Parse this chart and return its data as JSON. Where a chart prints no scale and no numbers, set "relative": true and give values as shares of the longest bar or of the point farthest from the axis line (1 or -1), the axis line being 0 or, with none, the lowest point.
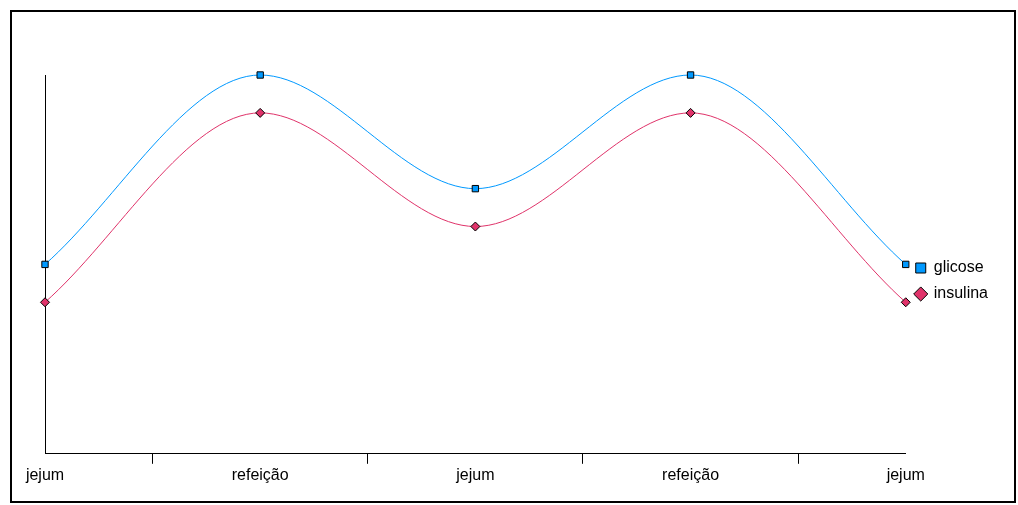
{
  "chart_data": {
    "type": "line",
    "relative": true,
    "categories": [
      "jejum",
      "refeição",
      "jejum",
      "refeição",
      "jejum"
    ],
    "series": [
      {
        "name": "glicose",
        "color": "#0099ff",
        "marker": "square",
        "values": [
          0.5,
          1,
          0.7,
          1,
          0.5
        ]
      },
      {
        "name": "insulina",
        "color": "#e0336a",
        "marker": "diamond",
        "values": [
          0.4,
          0.9,
          0.6,
          0.9,
          0.4
        ]
      }
    ],
    "grid": false,
    "legend": "right"
  }
}
